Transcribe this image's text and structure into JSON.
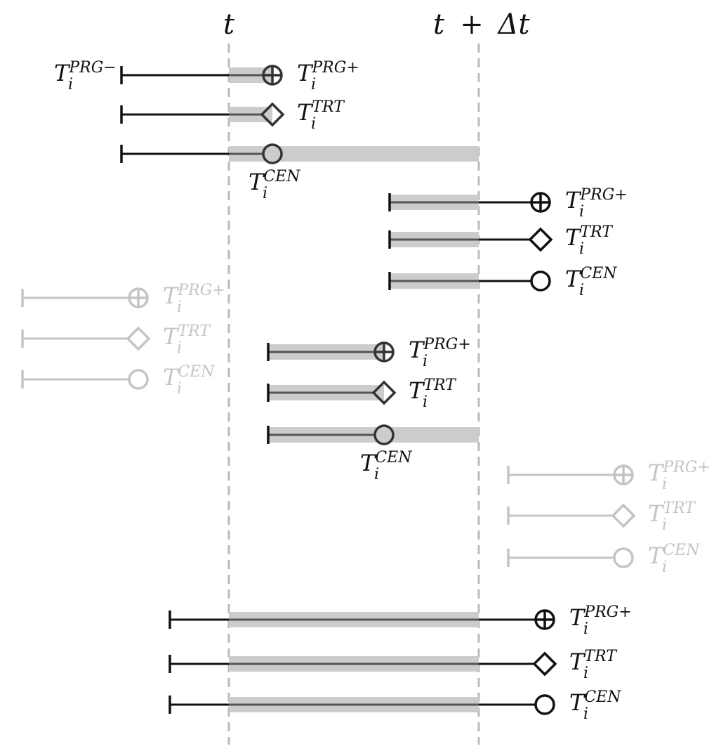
{
  "header": {
    "start_label": "t",
    "end_label_t": "t",
    "end_label_plus": "+",
    "end_label_delta": "Δt"
  },
  "labels": {
    "base": "T",
    "index": "i",
    "prg_minus": "PRG−",
    "prg_plus": "PRG+",
    "trt": "TRT",
    "cen": "CEN"
  },
  "colors": {
    "active": "#111111",
    "inactive": "#c4c4c4",
    "band": "#cccccc",
    "interval_line": "#555555",
    "window_guide": "#bbbbbb"
  },
  "marker_icons": {
    "prg_plus": "circle-plus-icon",
    "trt": "diamond-icon",
    "cen": "circle-icon"
  },
  "scenarios": [
    {
      "id": "onset-before-event-in-window",
      "active": true,
      "rows": [
        {
          "event": "prg_plus",
          "has_start_label": true,
          "start_label_key": "prg_minus"
        },
        {
          "event": "trt"
        },
        {
          "event": "cen"
        }
      ]
    },
    {
      "id": "onset-in-window-event-after",
      "active": true,
      "rows": [
        {
          "event": "prg_plus"
        },
        {
          "event": "trt"
        },
        {
          "event": "cen"
        }
      ]
    },
    {
      "id": "entirely-before-window",
      "active": false,
      "rows": [
        {
          "event": "prg_plus"
        },
        {
          "event": "trt"
        },
        {
          "event": "cen"
        }
      ]
    },
    {
      "id": "onset-in-window-event-in-window",
      "active": true,
      "rows": [
        {
          "event": "prg_plus"
        },
        {
          "event": "trt"
        },
        {
          "event": "cen"
        }
      ]
    },
    {
      "id": "entirely-after-window",
      "active": false,
      "rows": [
        {
          "event": "prg_plus"
        },
        {
          "event": "trt"
        },
        {
          "event": "cen"
        }
      ]
    },
    {
      "id": "spanning-whole-window",
      "active": true,
      "rows": [
        {
          "event": "prg_plus"
        },
        {
          "event": "trt"
        },
        {
          "event": "cen"
        }
      ]
    }
  ]
}
